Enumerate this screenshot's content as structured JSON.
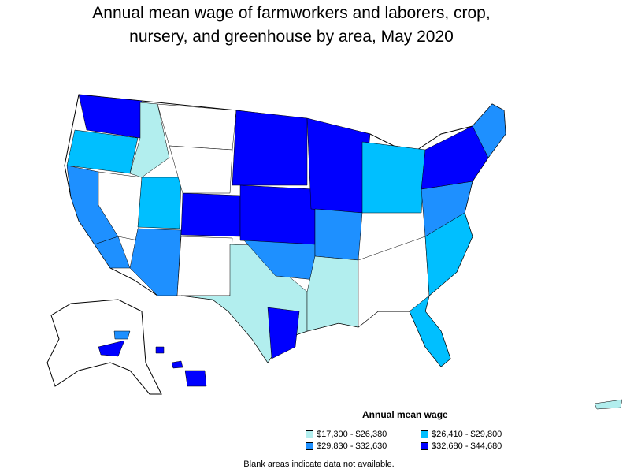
{
  "title_line1": "Annual mean wage of farmworkers and laborers, crop,",
  "title_line2": "nursery, and greenhouse by area, May 2020",
  "legend": {
    "title": "Annual mean wage",
    "items": [
      {
        "label": "$17,300 - $26,380",
        "color": "#b2eeee"
      },
      {
        "label": "$26,410 - $29,800",
        "color": "#00bfff"
      },
      {
        "label": "$29,830 - $32,630",
        "color": "#1e90ff"
      },
      {
        "label": "$32,680 - $44,680",
        "color": "#0000ff"
      }
    ]
  },
  "note": "Blank areas indicate data not available.",
  "colors": {
    "blank": "#ffffff",
    "border": "#000000"
  }
}
